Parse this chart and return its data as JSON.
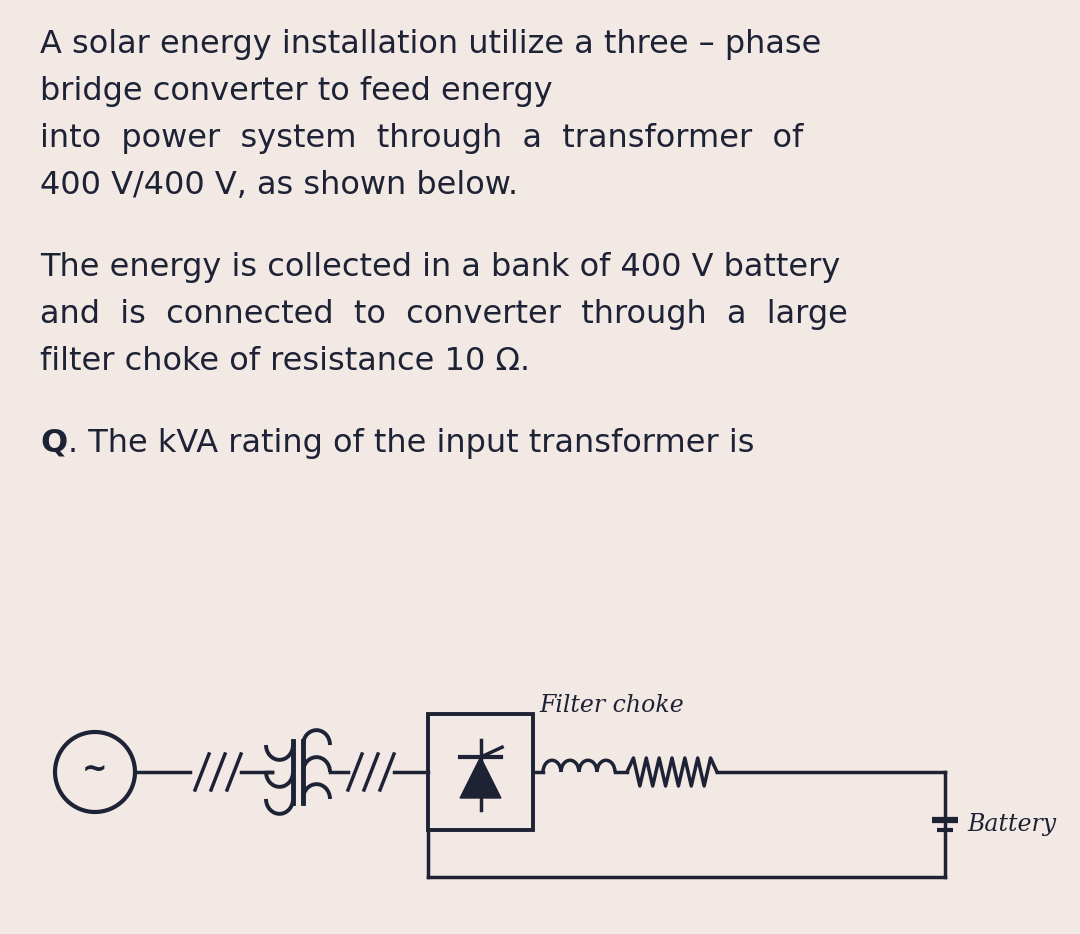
{
  "bg_color": "#f2e8e4",
  "text_color": "#1e2235",
  "line_color": "#1e2235",
  "para1_line1": "A solar energy installation utilize a three – phase",
  "para1_line2": "bridge converter to feed energy",
  "para1_line3": "into  power  system  through  a  transformer  of",
  "para1_line4": "400 V/400 V, as shown below.",
  "para2_line1": "The energy is collected in a bank of 400 V battery",
  "para2_line2": "and  is  connected  to  converter  through  a  large",
  "para2_line3": "filter choke of resistance 10 Ω.",
  "para3_text": ". The kVA rating of the input transformer is",
  "para3_bold": "Q",
  "filter_choke_label": "Filter choke",
  "battery_label": "Battery",
  "font_size_main": 23,
  "font_size_circuit": 17
}
